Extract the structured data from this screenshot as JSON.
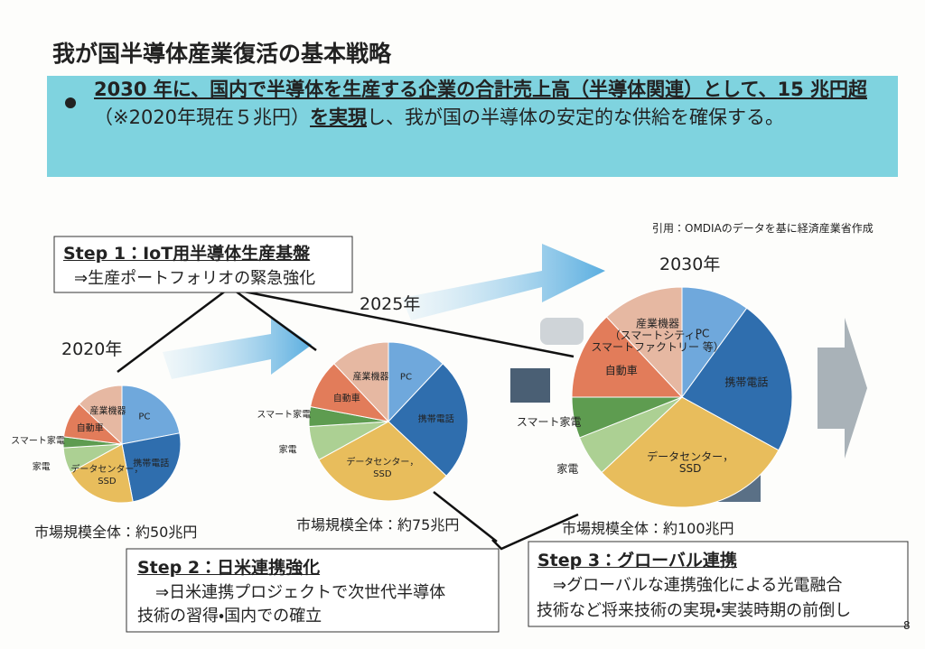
{
  "title": "我が国半導体産業復活の基本戦略",
  "banner": {
    "segments": [
      "2030 年に、国内で半導体を生産する企業の合計売上高（半導体関連）として、",
      "15 兆円超",
      "（※2020年現在５兆円）",
      "を実現",
      "し、我が国の半導体の安定的な供給を確保する。"
    ]
  },
  "citation": "引用：OMDIAのデータを基に経済産業省作成",
  "charts": [
    {
      "type": "pie",
      "title": "2020年",
      "total_label": "市場規模全体：約50兆円",
      "categories": [
        "PC",
        "携帯電話",
        "データセンター，\nSSD",
        "家電",
        "スマート家電",
        "自動車",
        "産業機器"
      ],
      "values": [
        22,
        25,
        20,
        7,
        3,
        10,
        13
      ],
      "colors": [
        "#6fa8dc",
        "#2f6eae",
        "#e8bd5c",
        "#acd093",
        "#5e9c50",
        "#e27c5a",
        "#e6b8a2"
      ]
    },
    {
      "type": "pie",
      "title": "2025年",
      "total_label": "市場規模全体：約75兆円",
      "categories": [
        "PC",
        "携帯電話",
        "データセンター，\nSSD",
        "家電",
        "スマート家電",
        "自動車",
        "産業機器"
      ],
      "values": [
        12,
        25,
        30,
        7,
        4,
        10,
        12
      ],
      "colors": [
        "#6fa8dc",
        "#2f6eae",
        "#e8bd5c",
        "#acd093",
        "#5e9c50",
        "#e27c5a",
        "#e6b8a2"
      ]
    },
    {
      "type": "pie",
      "title": "2030年",
      "total_label": "市場規模全体：約100兆円",
      "categories": [
        "PC",
        "携帯電話",
        "データセンター，\nSSD",
        "家電",
        "スマート家電",
        "自動車",
        "産業機器\n（スマートシティ、\nスマートファクトリー 等）"
      ],
      "values": [
        10,
        23,
        30,
        6,
        6,
        13,
        12
      ],
      "colors": [
        "#6fa8dc",
        "#2f6eae",
        "#e8bd5c",
        "#acd093",
        "#5e9c50",
        "#e27c5a",
        "#e6b8a2"
      ]
    }
  ],
  "steps": [
    {
      "title": "Step 1：IoT用半導体生産基盤",
      "lines": [
        "⇒生産ポートフォリオの緊急強化"
      ]
    },
    {
      "title": "Step 2：日米連携強化",
      "lines": [
        "⇒日米連携プロジェクトで次世代半導体",
        "技術の習得・国内での確立"
      ]
    },
    {
      "title": "Step 3：グローバル連携",
      "lines": [
        "⇒グローバルな連携強化による光電融合",
        "技術など将来技術の実現・実装時期の前倒し"
      ]
    }
  ],
  "page_number": "8"
}
